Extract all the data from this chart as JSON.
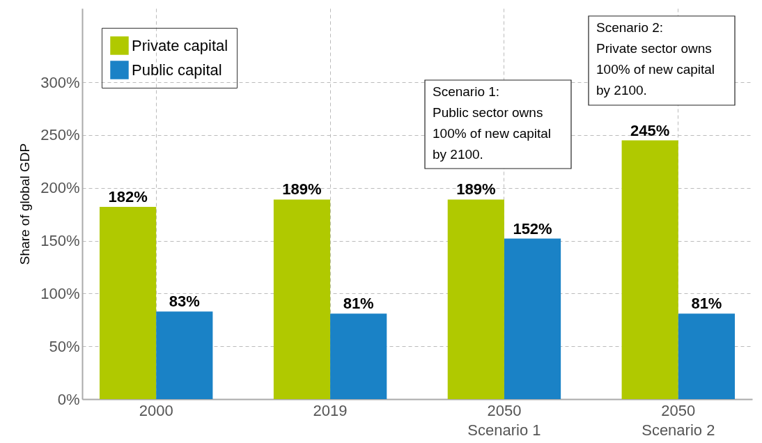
{
  "chart_data": {
    "type": "bar",
    "ylabel": "Share of global GDP",
    "categories": [
      "2000",
      "2019",
      "2050\nScenario 1",
      "2050\nScenario 2"
    ],
    "series": [
      {
        "name": "Private capital",
        "color": "#b0c900",
        "values": [
          182,
          189,
          189,
          245
        ],
        "value_labels": [
          "182%",
          "189%",
          "189%",
          "245%"
        ]
      },
      {
        "name": "Public capital",
        "color": "#1a82c6",
        "values": [
          83,
          81,
          152,
          81
        ],
        "value_labels": [
          "83%",
          "81%",
          "152%",
          "81%"
        ]
      }
    ],
    "ylim": [
      0,
      370
    ],
    "yticks": [
      {
        "value": 0,
        "label": "0%"
      },
      {
        "value": 50,
        "label": "50%"
      },
      {
        "value": 100,
        "label": "100%"
      },
      {
        "value": 150,
        "label": "150%"
      },
      {
        "value": 200,
        "label": "200%"
      },
      {
        "value": 250,
        "label": "250%"
      },
      {
        "value": 300,
        "label": "300%"
      }
    ],
    "grid": true,
    "legend": "top left",
    "annotations": [
      "Scenario 1:\nPublic sector owns\n100% of new capital\nby 2100.",
      "Scenario 2:\nPrivate sector owns\n100% of new capital\nby 2100."
    ]
  }
}
